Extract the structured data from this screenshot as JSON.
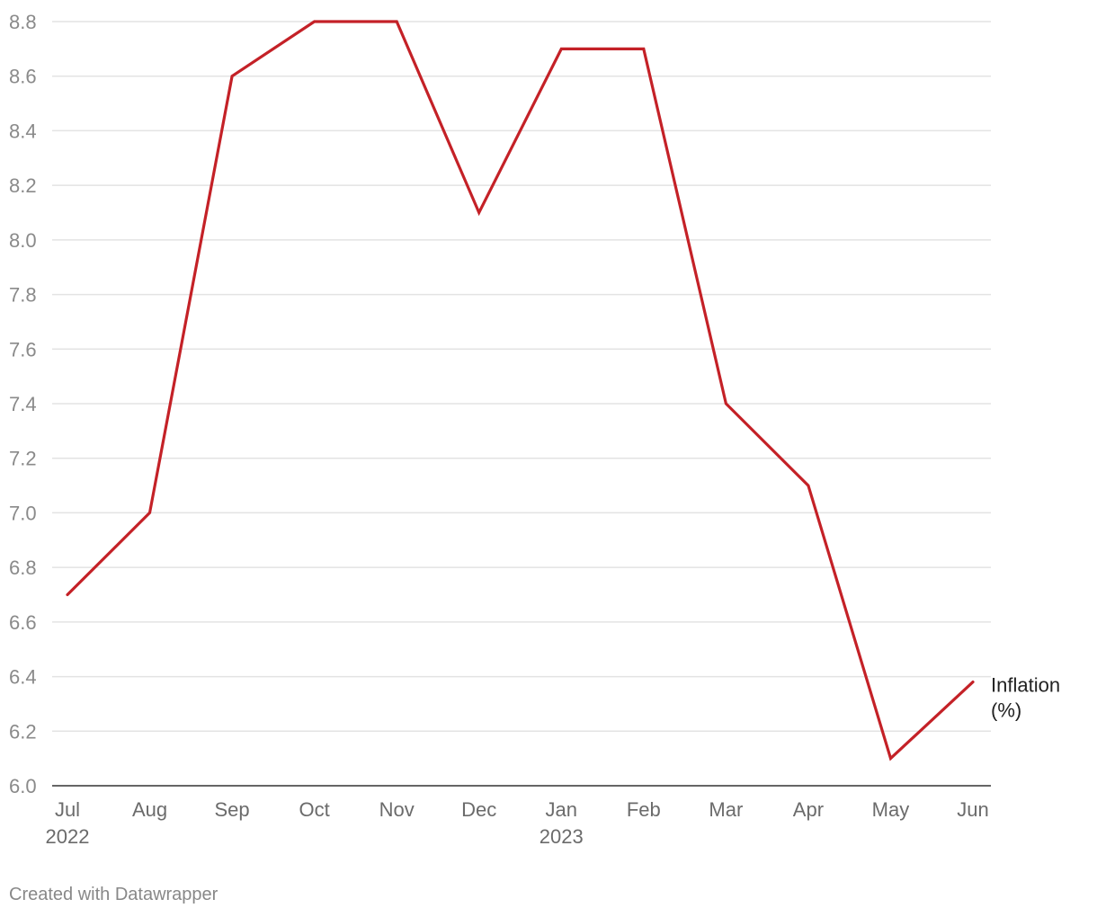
{
  "chart_data": {
    "type": "line",
    "x": [
      "Jul 2022",
      "Aug 2022",
      "Sep 2022",
      "Oct 2022",
      "Nov 2022",
      "Dec 2022",
      "Jan 2023",
      "Feb 2023",
      "Mar 2023",
      "Apr 2023",
      "May 2023",
      "Jun 2023"
    ],
    "x_tick_labels": [
      [
        "Jul",
        "2022"
      ],
      [
        "Aug"
      ],
      [
        "Sep"
      ],
      [
        "Oct"
      ],
      [
        "Nov"
      ],
      [
        "Dec"
      ],
      [
        "Jan",
        "2023"
      ],
      [
        "Feb"
      ],
      [
        "Mar"
      ],
      [
        "Apr"
      ],
      [
        "May"
      ],
      [
        "Jun"
      ]
    ],
    "series": [
      {
        "name": "Inflation (%)",
        "label_lines": [
          "Inflation",
          "(%)"
        ],
        "color": "#c42127",
        "values": [
          6.7,
          7.0,
          8.6,
          8.8,
          8.8,
          8.1,
          8.7,
          8.7,
          7.4,
          7.1,
          6.1,
          6.38
        ]
      }
    ],
    "ylim": [
      6.0,
      8.8
    ],
    "yticks": [
      "6.0",
      "6.2",
      "6.4",
      "6.6",
      "6.8",
      "7.0",
      "7.2",
      "7.4",
      "7.6",
      "7.8",
      "8.0",
      "8.2",
      "8.4",
      "8.6",
      "8.8"
    ],
    "grid": true,
    "legend": "inline label at end of line",
    "title": "",
    "xlabel": "",
    "ylabel": ""
  },
  "footer": {
    "credit": "Created with Datawrapper"
  }
}
